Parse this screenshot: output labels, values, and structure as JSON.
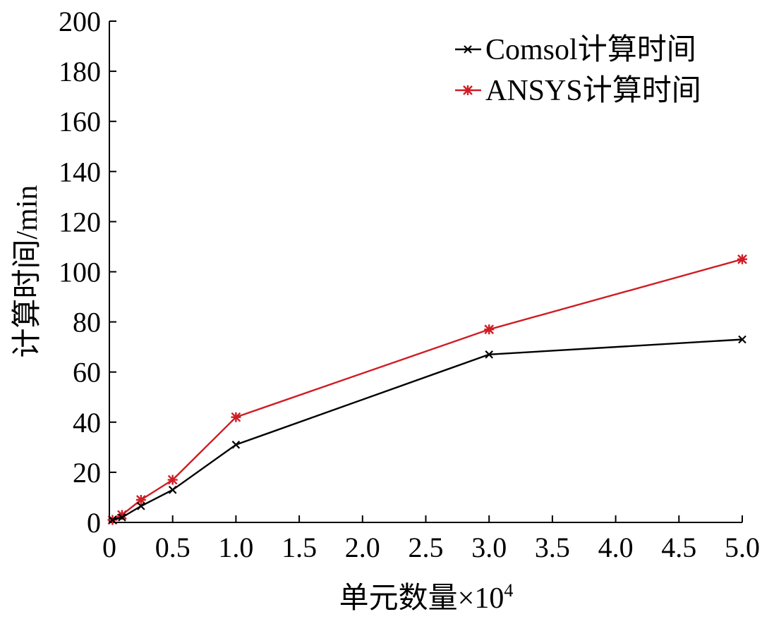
{
  "chart_data": {
    "type": "line",
    "title": "",
    "xlabel": "单元数量×10",
    "xlabel_superscript": "4",
    "ylabel": "计算时间/min",
    "xlim": [
      0,
      5.0
    ],
    "ylim": [
      0,
      200
    ],
    "x_ticks": [
      "0",
      "0.5",
      "1.0",
      "1.5",
      "2.0",
      "2.5",
      "3.0",
      "3.5",
      "4.0",
      "4.5",
      "5.0"
    ],
    "x_tick_values": [
      0,
      0.5,
      1.0,
      1.5,
      2.0,
      2.5,
      3.0,
      3.5,
      4.0,
      4.5,
      5.0
    ],
    "y_ticks": [
      "0",
      "20",
      "40",
      "60",
      "80",
      "100",
      "120",
      "140",
      "160",
      "180",
      "200"
    ],
    "y_tick_values": [
      0,
      20,
      40,
      60,
      80,
      100,
      120,
      140,
      160,
      180,
      200
    ],
    "grid": false,
    "legend_position": "top-right",
    "series": [
      {
        "name": "Comsol计算时间",
        "color": "#000000",
        "marker": "x",
        "x": [
          0.025,
          0.1,
          0.25,
          0.5,
          1.0,
          3.0,
          5.0
        ],
        "y": [
          1,
          2,
          6.5,
          13,
          31,
          67,
          73
        ]
      },
      {
        "name": "ANSYS计算时间",
        "color": "#d01c24",
        "marker": "asterisk",
        "x": [
          0.025,
          0.1,
          0.25,
          0.5,
          1.0,
          3.0,
          5.0
        ],
        "y": [
          1,
          3,
          9,
          17,
          42,
          77,
          105
        ]
      }
    ]
  }
}
